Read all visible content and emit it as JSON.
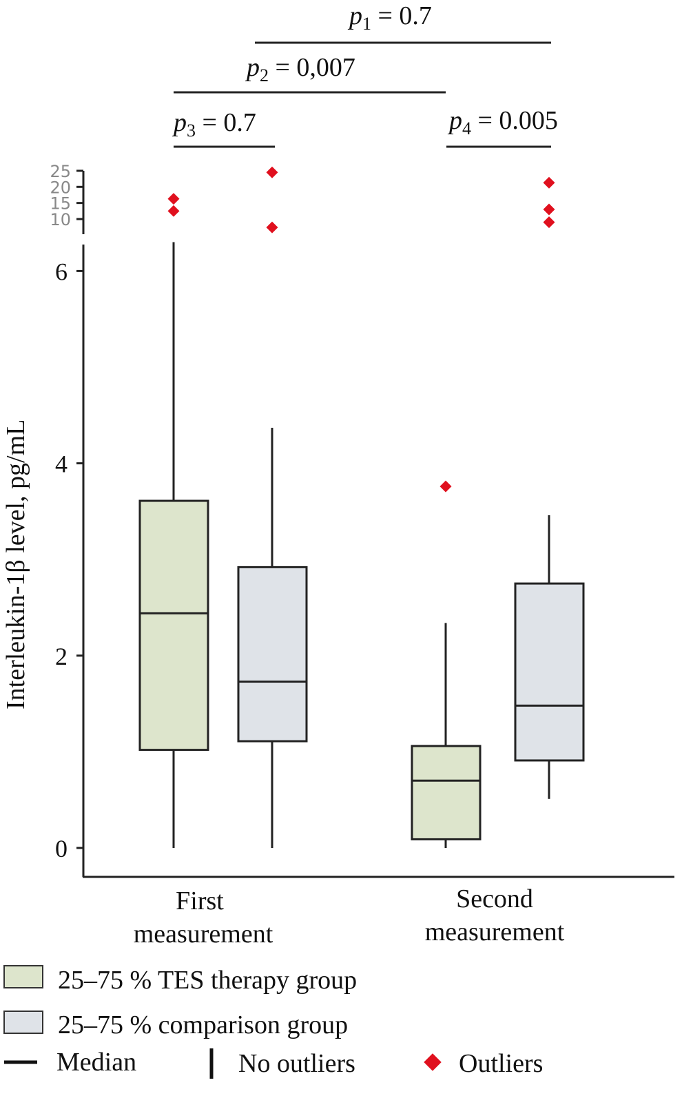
{
  "chart_data": {
    "type": "box",
    "ylabel": "Interleukin-1β level, pg/mL",
    "y_lower_ticks": [
      "0",
      "2",
      "4",
      "6"
    ],
    "y_lower_range": [
      0,
      6.6
    ],
    "y_upper_ticks": [
      "10",
      "15",
      "20",
      "25"
    ],
    "y_upper_range": [
      7,
      25
    ],
    "categories": [
      {
        "line1": "First",
        "line2": "measurement"
      },
      {
        "line1": "Second",
        "line2": "measurement"
      }
    ],
    "boxes": [
      {
        "category": 0,
        "group": "tes",
        "whisker_low": 0,
        "q1": 1.02,
        "median": 2.44,
        "q3": 3.61,
        "whisker_high": 6.3,
        "outliers": [
          16.3,
          12.5
        ]
      },
      {
        "category": 0,
        "group": "comparison",
        "whisker_low": 0,
        "q1": 1.11,
        "median": 1.73,
        "q3": 2.92,
        "whisker_high": 4.37,
        "outliers": [
          24.5,
          7.4
        ]
      },
      {
        "category": 1,
        "group": "tes",
        "whisker_low": 0,
        "q1": 0.09,
        "median": 0.7,
        "q3": 1.06,
        "whisker_high": 2.34,
        "outliers": [
          3.76
        ]
      },
      {
        "category": 1,
        "group": "comparison",
        "whisker_low": 0.51,
        "q1": 0.91,
        "median": 1.48,
        "q3": 2.75,
        "whisker_high": 3.46,
        "outliers": [
          21.3,
          13.0,
          9.0
        ]
      }
    ],
    "comparisons": [
      {
        "p": "p",
        "sub": "1",
        "value": "= 0.7",
        "from": 1,
        "to": 3
      },
      {
        "p": "p",
        "sub": "2",
        "value": "= 0,007",
        "from": 0,
        "to": 2
      },
      {
        "p": "p",
        "sub": "3",
        "value": "= 0.7",
        "from": 0,
        "to": 1
      },
      {
        "p": "p",
        "sub": "4",
        "value": "= 0.005",
        "from": 2,
        "to": 3
      }
    ],
    "legend": {
      "tes": "25–75 % TES therapy group",
      "comparison": "25–75 % comparison group",
      "median": "Median",
      "no_outliers": "No outliers",
      "outliers": "Outliers"
    },
    "colors": {
      "tes": "#dde5cc",
      "comparison": "#dfe3e8",
      "outlier": "#e0101e",
      "line": "#222222"
    }
  }
}
